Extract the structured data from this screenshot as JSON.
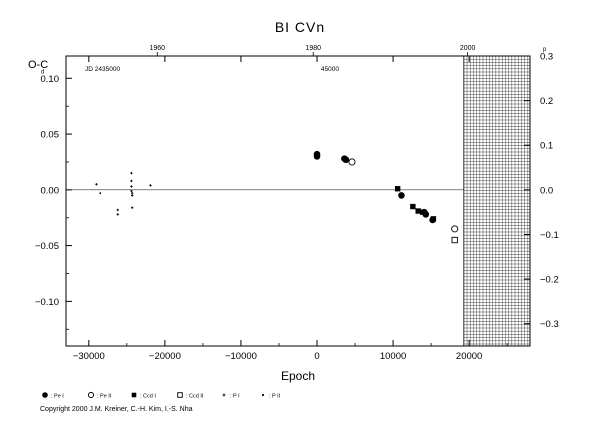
{
  "chart_data": {
    "type": "scatter",
    "title": "BI CVn",
    "xlabel": "Epoch",
    "ylabel": "O-C",
    "ylabel_unit_left": "d",
    "ylabel_unit_right": "p",
    "xlim": [
      -33000,
      28000
    ],
    "ylim": [
      -0.14,
      0.12
    ],
    "ylim_right": [
      -0.35,
      0.3
    ],
    "x_ticks": [
      -30000,
      -20000,
      -10000,
      0,
      10000,
      20000
    ],
    "x_tick_labels": [
      "−30000",
      "−20000",
      "−10000",
      "0",
      "10000",
      "20000"
    ],
    "y_ticks": [
      0.1,
      0.05,
      0.0,
      -0.05,
      -0.1
    ],
    "y_tick_labels": [
      "0.10",
      "0.05",
      "0.00",
      "−0.05",
      "−0.10"
    ],
    "y_right_ticks": [
      0.3,
      0.2,
      0.1,
      0.0,
      -0.1,
      -0.2,
      -0.3
    ],
    "y_right_tick_labels": [
      "0.3",
      "0.2",
      "0.1",
      "0.0",
      "−0.1",
      "−0.2",
      "−0.3"
    ],
    "top_axis": {
      "labels": [
        {
          "epoch": -21000,
          "text": "1960"
        },
        {
          "epoch": -500,
          "text": "1980"
        },
        {
          "epoch": 19800,
          "text": "2000"
        }
      ],
      "jd_label": "JD 2435000",
      "jd_label_epoch": -30500,
      "jd_mid_label": "45000",
      "jd_mid_label_epoch": 1700
    },
    "future_region_start": 19300,
    "zero_line": 0,
    "series": [
      {
        "name": "Pe I",
        "marker": "filled-circle",
        "points": [
          [
            0,
            0.032
          ],
          [
            0,
            0.03
          ],
          [
            3600,
            0.028
          ],
          [
            3800,
            0.027
          ],
          [
            11100,
            -0.005
          ],
          [
            14100,
            -0.02
          ],
          [
            14300,
            -0.022
          ],
          [
            15200,
            -0.027
          ]
        ]
      },
      {
        "name": "Pe II",
        "marker": "open-circle",
        "points": [
          [
            4600,
            0.025
          ],
          [
            18100,
            -0.035
          ]
        ]
      },
      {
        "name": "Ccd I",
        "marker": "filled-square",
        "points": [
          [
            10600,
            0.001
          ],
          [
            12600,
            -0.015
          ],
          [
            13300,
            -0.019
          ],
          [
            13900,
            -0.02
          ],
          [
            15300,
            -0.026
          ]
        ]
      },
      {
        "name": "Ccd II",
        "marker": "open-square",
        "points": [
          [
            18100,
            -0.045
          ]
        ]
      },
      {
        "name": "P I",
        "marker": "plus",
        "points": [
          [
            -29000,
            0.005
          ],
          [
            -26200,
            -0.018
          ],
          [
            -26200,
            -0.022
          ],
          [
            -24400,
            0.015
          ],
          [
            -24400,
            0.008
          ],
          [
            -24400,
            0.003
          ],
          [
            -24400,
            -0.001
          ],
          [
            -24300,
            -0.003
          ],
          [
            -24300,
            -0.005
          ],
          [
            -24300,
            -0.016
          ],
          [
            -21900,
            0.004
          ]
        ]
      },
      {
        "name": "P II",
        "marker": "dot",
        "points": [
          [
            -28500,
            -0.003
          ]
        ]
      }
    ],
    "legend_position": "bottom-left",
    "grid": false
  },
  "legend_title_prefix": ":",
  "copyright": "Copyright 2000 J.M. Kreiner, C.-H. Kim, I.-S. Nha"
}
